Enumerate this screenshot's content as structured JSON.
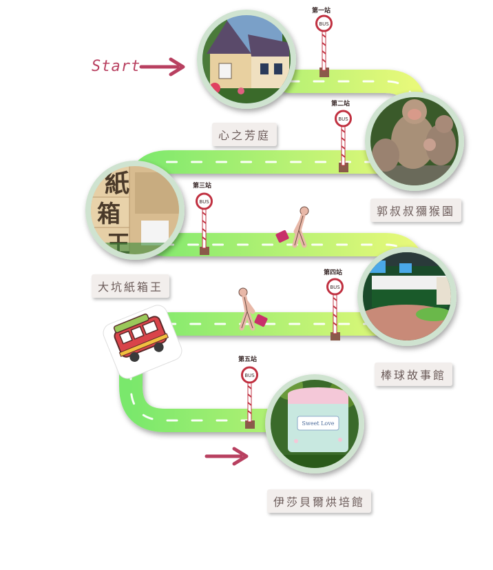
{
  "start_label": "Start",
  "stops": [
    {
      "name": "心之芳庭",
      "station": "第一站"
    },
    {
      "name": "郭叔叔獼猴園",
      "station": "第二站"
    },
    {
      "name": "大坑紙箱王",
      "station": "第三站"
    },
    {
      "name": "棒球故事館",
      "station": "第四站"
    },
    {
      "name": "伊莎貝爾烘培館",
      "station": "第五站"
    }
  ],
  "bus_sign_text": "BUS",
  "photo_text": {
    "carton_chars": [
      "紙",
      "箱",
      "王"
    ],
    "cake_box_label": "Sweet Love"
  },
  "colors": {
    "road_light": "#e8f97a",
    "road_dark": "#6fe86a",
    "circle_border": "#cfe3d0",
    "arrow": "#b84060",
    "label_bg": "#f2eeec"
  }
}
